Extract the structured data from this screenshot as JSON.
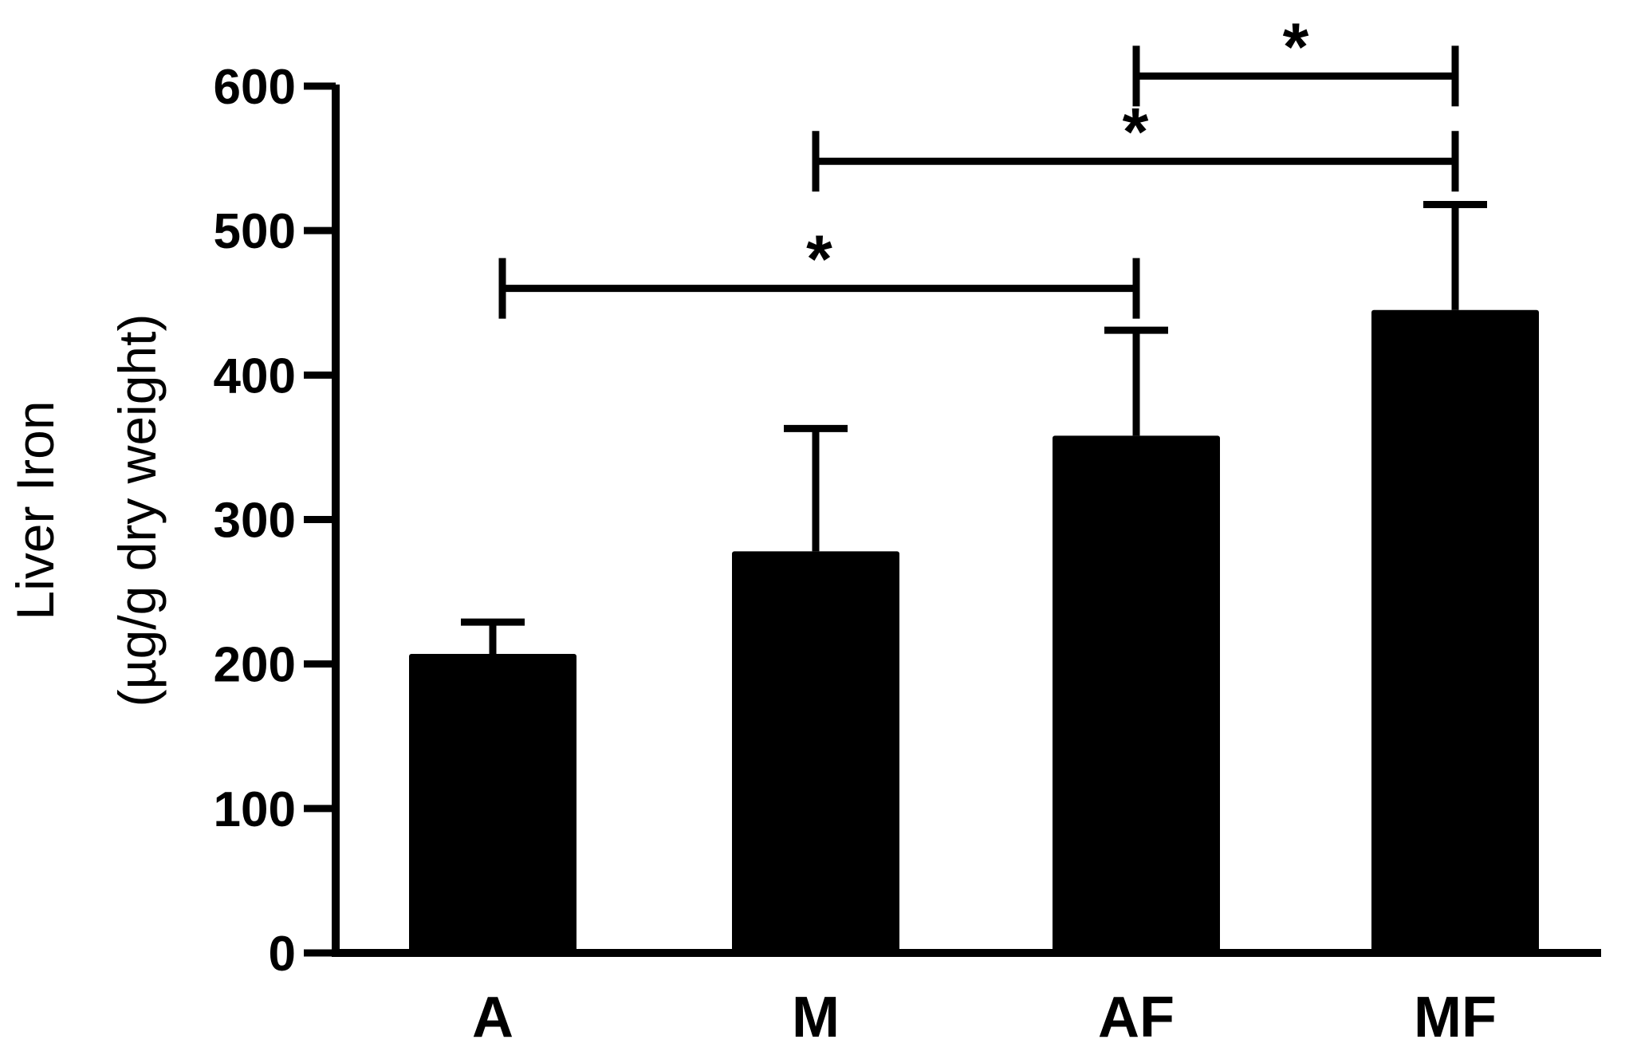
{
  "chart_data": {
    "type": "bar",
    "categories": [
      "A",
      "M",
      "AF",
      "MF"
    ],
    "values": [
      207,
      278,
      358,
      445
    ],
    "errors": [
      22,
      85,
      73,
      73
    ],
    "ylabel_line1": "Liver Iron",
    "ylabel_line2": "(µg/g dry weight)",
    "ylim": [
      0,
      600
    ],
    "yticks": [
      0,
      100,
      200,
      300,
      400,
      500,
      600
    ],
    "bar_color": "#000000",
    "grid": false,
    "legend": "none",
    "significance": [
      {
        "from": "A",
        "to": "AF",
        "label": "*",
        "level": 460
      },
      {
        "from": "M",
        "to": "MF",
        "label": "*",
        "level": 548
      },
      {
        "from": "AF",
        "to": "MF",
        "label": "*",
        "level": 607
      }
    ]
  }
}
